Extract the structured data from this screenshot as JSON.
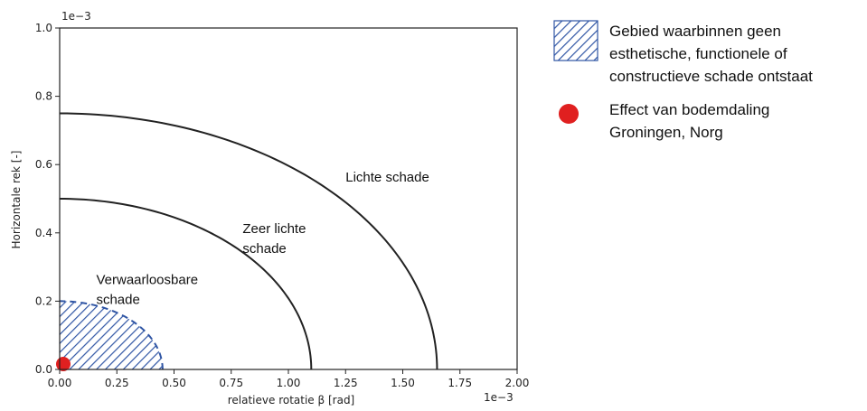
{
  "chart_data": {
    "type": "line",
    "xlabel": "relatieve rotatie β [rad]",
    "ylabel": "Horizontale rek [-]",
    "x_exponent": "1e−3",
    "y_exponent": "1e−3",
    "xlim": [
      0,
      2.0
    ],
    "ylim": [
      0,
      1.0
    ],
    "x_ticks": [
      "0.00",
      "0.25",
      "0.50",
      "0.75",
      "1.00",
      "1.25",
      "1.50",
      "1.75",
      "2.00"
    ],
    "y_ticks": [
      "0.0",
      "0.2",
      "0.4",
      "0.6",
      "0.8",
      "1.0"
    ],
    "series": [
      {
        "type": "quarter-ellipse",
        "x_intercept": 1.65,
        "y_intercept": 0.75,
        "color": "#222222"
      },
      {
        "type": "quarter-ellipse",
        "x_intercept": 1.1,
        "y_intercept": 0.5,
        "color": "#222222"
      },
      {
        "type": "quarter-ellipse-hatched",
        "x_intercept": 0.45,
        "y_intercept": 0.2,
        "color": "#2f55a4",
        "dashed": true
      }
    ],
    "point": {
      "x": 0.0,
      "y": 0.0,
      "color": "#e02020"
    },
    "annotations": [
      {
        "text": "Lichte schade",
        "x": 1.25,
        "y": 0.55
      },
      {
        "text": "Zeer lichte\nschade",
        "x": 0.8,
        "y": 0.4
      },
      {
        "text": "Verwaarloosbare\nschade",
        "x": 0.16,
        "y": 0.25
      }
    ],
    "legend": [
      {
        "label": "Gebied waarbinnen geen\nesthetische, functionele of\nconstructieve schade ontstaat",
        "kind": "hatch"
      },
      {
        "label": "Effect van bodemdaling\nGroningen, Norg",
        "kind": "dot"
      }
    ]
  }
}
